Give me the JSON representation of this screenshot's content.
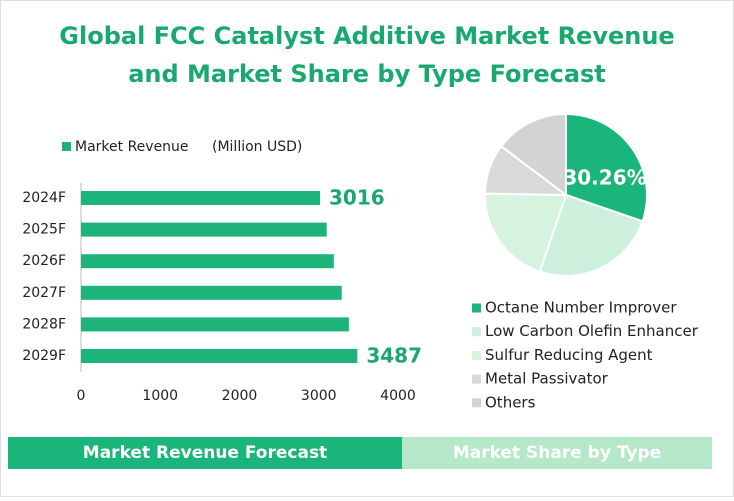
{
  "title": [
    "Global FCC Catalyst Additive Market Revenue",
    "and Market Share by Type Forecast"
  ],
  "tabs": [
    "Market Revenue Forecast",
    "Market Share by Type"
  ],
  "chart_data": [
    {
      "type": "hbar",
      "categories": [
        "2024F",
        "2025F",
        "2026F",
        "2027F",
        "2028F",
        "2029F"
      ],
      "series": [
        {
          "name": "Market Revenue",
          "color": "#1db47a",
          "values": [
            3016,
            3100,
            3190,
            3290,
            3380,
            3487
          ],
          "value_labels": [
            "3016",
            null,
            null,
            null,
            null,
            "3487"
          ]
        }
      ],
      "unit": "(Million USD)",
      "xlim": [
        0,
        4000
      ],
      "xticks": [
        0,
        1000,
        2000,
        3000,
        4000
      ]
    },
    {
      "type": "pie",
      "categories": [
        "Octane Number Improver",
        "Low Carbon Olefin Enhancer",
        "Sulfur Reducing Agent",
        "Metal Passivator",
        "Others"
      ],
      "values": [
        30.26,
        25,
        20,
        10,
        14.74
      ],
      "value_labels": [
        "30.26%",
        null,
        null,
        null,
        null
      ],
      "colors": [
        "#19b57a",
        "#cdf0dc",
        "#d5f3df",
        "#d9d9d9",
        "#d3d3d3"
      ]
    }
  ]
}
